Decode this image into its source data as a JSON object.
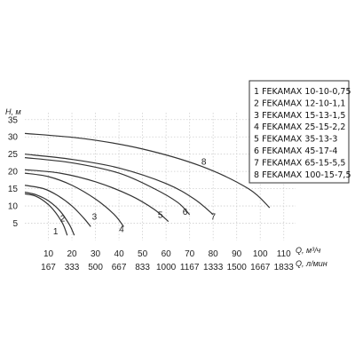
{
  "chart_data": {
    "type": "line",
    "title": "",
    "ylabel": "H, м",
    "xlabel_primary": "Q, м³/ч",
    "xlabel_secondary": "Q, л/мин",
    "x_ticks": [
      10,
      20,
      30,
      40,
      50,
      60,
      70,
      80,
      90,
      100,
      110
    ],
    "x_ticks_secondary": [
      "167",
      "333",
      "500",
      "667",
      "833",
      "1000",
      "1167",
      "1333",
      "1500",
      "1667",
      "1833"
    ],
    "y_ticks": [
      5,
      10,
      15,
      20,
      25,
      30,
      35
    ],
    "xlim": [
      0,
      115
    ],
    "ylim": [
      0,
      37
    ],
    "grid": true,
    "legend_position": "top-right",
    "series": [
      {
        "name": "1 FEKAMAX 10-10-0,75",
        "label": "1",
        "x": [
          0,
          4,
          8,
          12,
          16,
          18
        ],
        "y": [
          13.5,
          13,
          11.5,
          9,
          5,
          1.5
        ]
      },
      {
        "name": "2 FEKAMAX 12-10-1,1",
        "label": "2",
        "x": [
          0,
          5,
          10,
          15,
          19,
          21
        ],
        "y": [
          14,
          13.2,
          11.5,
          8.5,
          4.5,
          1.5
        ]
      },
      {
        "name": "3 FEKAMAX 15-13-1,5",
        "label": "3",
        "x": [
          0,
          8,
          14,
          20,
          25,
          28
        ],
        "y": [
          16,
          15,
          13,
          10,
          6.5,
          4
        ]
      },
      {
        "name": "4 FEKAMAX 25-15-2,2",
        "label": "4",
        "x": [
          0,
          10,
          20,
          30,
          38,
          42
        ],
        "y": [
          19.5,
          18.5,
          16,
          12,
          7.5,
          4
        ]
      },
      {
        "name": "5 FEKAMAX 35-13-3",
        "label": "5",
        "x": [
          0,
          15,
          30,
          45,
          55,
          61
        ],
        "y": [
          20.5,
          19.5,
          17,
          13,
          9,
          5.5
        ]
      },
      {
        "name": "6 FEKAMAX 45-17-4",
        "label": "6",
        "x": [
          0,
          20,
          40,
          55,
          65,
          70
        ],
        "y": [
          24,
          22.5,
          19.5,
          15,
          11,
          7.5
        ]
      },
      {
        "name": "7 FEKAMAX 65-15-5,5",
        "label": "7",
        "x": [
          0,
          20,
          40,
          60,
          72,
          80
        ],
        "y": [
          25,
          23.5,
          21,
          16.5,
          12,
          7.5
        ]
      },
      {
        "name": "8 FEKAMAX 100-15-7,5",
        "label": "8",
        "x": [
          0,
          25,
          50,
          75,
          95,
          104
        ],
        "y": [
          31,
          29.5,
          26.5,
          21.5,
          15,
          9.5
        ]
      }
    ]
  }
}
